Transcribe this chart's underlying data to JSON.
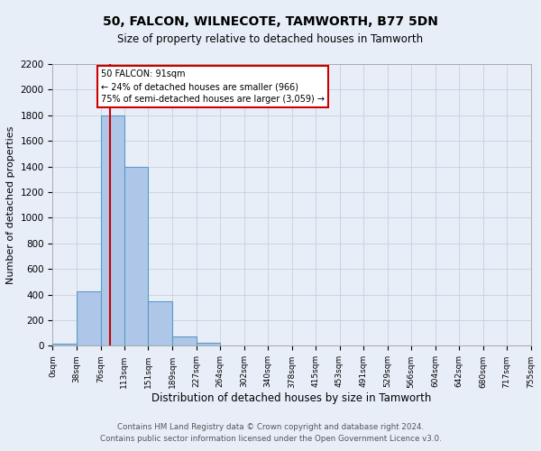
{
  "title": "50, FALCON, WILNECOTE, TAMWORTH, B77 5DN",
  "subtitle": "Size of property relative to detached houses in Tamworth",
  "xlabel": "Distribution of detached houses by size in Tamworth",
  "ylabel": "Number of detached properties",
  "bin_edges": [
    0,
    38,
    76,
    113,
    151,
    189,
    227,
    264,
    302,
    340,
    378,
    415,
    453,
    491,
    529,
    566,
    604,
    642,
    680,
    717,
    755
  ],
  "bin_counts": [
    15,
    425,
    1800,
    1400,
    350,
    75,
    25,
    5,
    0,
    0,
    0,
    0,
    0,
    0,
    0,
    0,
    0,
    0,
    0,
    0
  ],
  "bar_color": "#aec6e8",
  "bar_edge_color": "#5a9ac8",
  "property_size": 91,
  "red_line_color": "#cc0000",
  "annotation_text_line1": "50 FALCON: 91sqm",
  "annotation_text_line2": "← 24% of detached houses are smaller (966)",
  "annotation_text_line3": "75% of semi-detached houses are larger (3,059) →",
  "annotation_box_color": "#ffffff",
  "annotation_box_edge_color": "#cc0000",
  "ylim": [
    0,
    2200
  ],
  "yticks": [
    0,
    200,
    400,
    600,
    800,
    1000,
    1200,
    1400,
    1600,
    1800,
    2000,
    2200
  ],
  "tick_labels": [
    "0sqm",
    "38sqm",
    "76sqm",
    "113sqm",
    "151sqm",
    "189sqm",
    "227sqm",
    "264sqm",
    "302sqm",
    "340sqm",
    "378sqm",
    "415sqm",
    "453sqm",
    "491sqm",
    "529sqm",
    "566sqm",
    "604sqm",
    "642sqm",
    "680sqm",
    "717sqm",
    "755sqm"
  ],
  "footer_line1": "Contains HM Land Registry data © Crown copyright and database right 2024.",
  "footer_line2": "Contains public sector information licensed under the Open Government Licence v3.0.",
  "grid_color": "#c8d0dc",
  "bg_color": "#e8eef8",
  "spine_color": "#aaaaaa"
}
